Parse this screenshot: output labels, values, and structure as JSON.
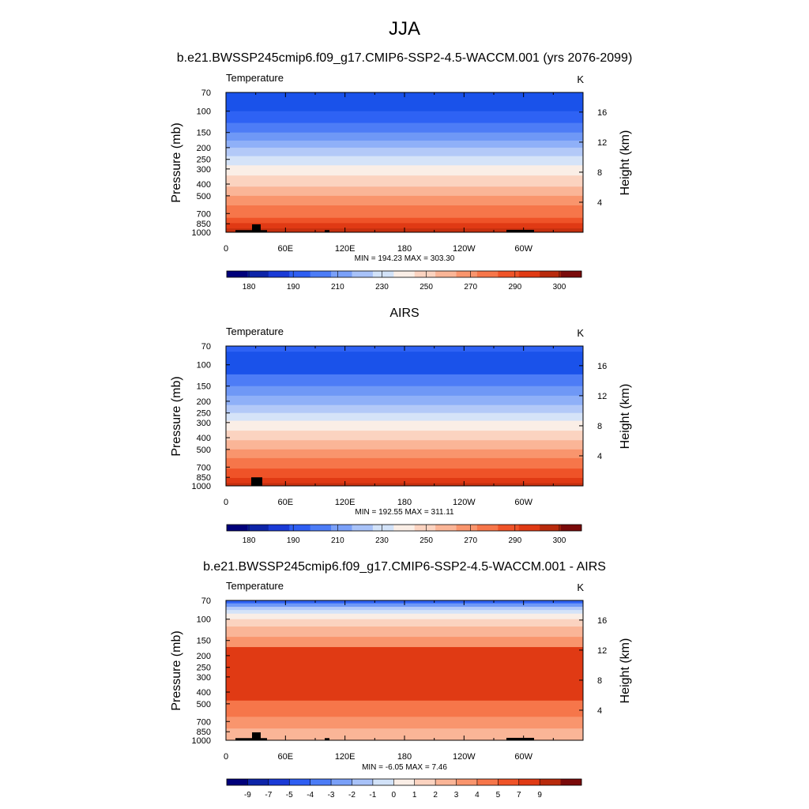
{
  "figure": {
    "title": "JJA"
  },
  "chart_data": [
    {
      "type": "heatmap",
      "title": "b.e21.BWSSP245cmip6.f09_g17.CMIP6-SSP2-4.5-WACCM.001 (yrs 2076-2099)",
      "corner_left": "Temperature",
      "corner_right": "K",
      "ylabel": "Pressure (mb)",
      "ylabel_right": "Height (km)",
      "x_ticks": [
        "0",
        "60E",
        "120E",
        "180",
        "120W",
        "60W"
      ],
      "y_ticks": [
        "70",
        "100",
        "150",
        "200",
        "250",
        "300",
        "400",
        "500",
        "700",
        "850",
        "1000"
      ],
      "y_right_ticks": [
        "16",
        "12",
        "8",
        "4"
      ],
      "stats": "MIN = 194.23  MAX = 303.30",
      "colorbar_labels": [
        "180",
        "190",
        "210",
        "230",
        "250",
        "270",
        "290",
        "300"
      ],
      "bands": [
        {
          "p": 70,
          "value": 195,
          "color": "#1a52ea"
        },
        {
          "p": 100,
          "value": 200,
          "color": "#2e62f4"
        },
        {
          "p": 125,
          "value": 205,
          "color": "#4d7cf6"
        },
        {
          "p": 150,
          "value": 210,
          "color": "#6f98f6"
        },
        {
          "p": 175,
          "value": 215,
          "color": "#8fb0f8"
        },
        {
          "p": 200,
          "value": 220,
          "color": "#b3c9f8"
        },
        {
          "p": 235,
          "value": 230,
          "color": "#d5e3f8"
        },
        {
          "p": 280,
          "value": 240,
          "color": "#faeee6"
        },
        {
          "p": 340,
          "value": 250,
          "color": "#fbd3c0"
        },
        {
          "p": 420,
          "value": 260,
          "color": "#fab597"
        },
        {
          "p": 500,
          "value": 270,
          "color": "#f9956d"
        },
        {
          "p": 600,
          "value": 280,
          "color": "#f6764a"
        },
        {
          "p": 760,
          "value": 290,
          "color": "#ef5328"
        },
        {
          "p": 840,
          "value": 295,
          "color": "#e03a14"
        },
        {
          "p": 930,
          "value": 300,
          "color": "#c5300f"
        }
      ]
    },
    {
      "type": "heatmap",
      "title": "AIRS",
      "corner_left": "Temperature",
      "corner_right": "K",
      "ylabel": "Pressure (mb)",
      "ylabel_right": "Height (km)",
      "x_ticks": [
        "0",
        "60E",
        "120E",
        "180",
        "120W",
        "60W"
      ],
      "y_ticks": [
        "70",
        "100",
        "150",
        "200",
        "250",
        "300",
        "400",
        "500",
        "700",
        "850",
        "1000"
      ],
      "y_right_ticks": [
        "16",
        "12",
        "8",
        "4"
      ],
      "stats": "MIN = 192.55  MAX = 311.11",
      "colorbar_labels": [
        "180",
        "190",
        "210",
        "230",
        "250",
        "270",
        "290",
        "300"
      ],
      "bands": [
        {
          "p": 70,
          "value": 193,
          "color": "#2e62f4"
        },
        {
          "p": 78,
          "value": 198,
          "color": "#1a52ea"
        },
        {
          "p": 120,
          "value": 205,
          "color": "#4d7cf6"
        },
        {
          "p": 150,
          "value": 210,
          "color": "#6f98f6"
        },
        {
          "p": 180,
          "value": 215,
          "color": "#8fb0f8"
        },
        {
          "p": 215,
          "value": 222,
          "color": "#b3c9f8"
        },
        {
          "p": 250,
          "value": 230,
          "color": "#d5e3f8"
        },
        {
          "p": 290,
          "value": 240,
          "color": "#faeee6"
        },
        {
          "p": 350,
          "value": 250,
          "color": "#fbd3c0"
        },
        {
          "p": 420,
          "value": 260,
          "color": "#fab597"
        },
        {
          "p": 500,
          "value": 270,
          "color": "#f9956d"
        },
        {
          "p": 590,
          "value": 280,
          "color": "#f6764a"
        },
        {
          "p": 720,
          "value": 290,
          "color": "#ef5328"
        },
        {
          "p": 860,
          "value": 297,
          "color": "#e03a14"
        },
        {
          "p": 950,
          "value": 302,
          "color": "#c5300f"
        }
      ]
    },
    {
      "type": "heatmap",
      "title": "b.e21.BWSSP245cmip6.f09_g17.CMIP6-SSP2-4.5-WACCM.001 - AIRS",
      "corner_left": "Temperature",
      "corner_right": "K",
      "ylabel": "Pressure (mb)",
      "ylabel_right": "Height (km)",
      "x_ticks": [
        "0",
        "60E",
        "120E",
        "180",
        "120W",
        "60W"
      ],
      "y_ticks": [
        "70",
        "100",
        "150",
        "200",
        "250",
        "300",
        "400",
        "500",
        "700",
        "850",
        "1000"
      ],
      "y_right_ticks": [
        "16",
        "12",
        "8",
        "4"
      ],
      "stats": "MIN =  -6.05  MAX =   7.46",
      "colorbar_labels": [
        "-9",
        "-7",
        "-5",
        "-4",
        "-3",
        "-2",
        "-1",
        "0",
        "1",
        "2",
        "3",
        "4",
        "5",
        "7",
        "9"
      ],
      "bands": [
        {
          "p": 70,
          "value": -4,
          "color": "#2e62f4"
        },
        {
          "p": 74,
          "value": -3,
          "color": "#6f98f6"
        },
        {
          "p": 79,
          "value": -2,
          "color": "#b3c9f8"
        },
        {
          "p": 84,
          "value": -1,
          "color": "#d5e3f8"
        },
        {
          "p": 90,
          "value": 0,
          "color": "#faeee6"
        },
        {
          "p": 100,
          "value": 1,
          "color": "#fbd3c0"
        },
        {
          "p": 115,
          "value": 2,
          "color": "#fab597"
        },
        {
          "p": 140,
          "value": 3,
          "color": "#f9956d"
        },
        {
          "p": 170,
          "value": 5,
          "color": "#e03a14"
        },
        {
          "p": 470,
          "value": 4,
          "color": "#f6764a"
        },
        {
          "p": 640,
          "value": 3,
          "color": "#f9956d"
        },
        {
          "p": 800,
          "value": 2,
          "color": "#fab597"
        }
      ]
    }
  ],
  "colorbar_colors": {
    "temperature": [
      "#00007a",
      "#0d24a8",
      "#1a3ad6",
      "#2e5ef2",
      "#4c7cf6",
      "#7aa0f8",
      "#a8c2f8",
      "#d2e2f8",
      "#faeee6",
      "#fbd3c0",
      "#fab597",
      "#f9956d",
      "#f6764a",
      "#ef5328",
      "#e03a14",
      "#b82a0c",
      "#7a0a0a"
    ],
    "difference": [
      "#00007a",
      "#0d24a8",
      "#1a3ad6",
      "#2e5ef2",
      "#4c7cf6",
      "#7aa0f8",
      "#a8c2f8",
      "#d2e2f8",
      "#faeee6",
      "#fbd3c0",
      "#fab597",
      "#f9956d",
      "#f6764a",
      "#ef5328",
      "#e03a14",
      "#b82a0c",
      "#7a0a0a"
    ]
  }
}
